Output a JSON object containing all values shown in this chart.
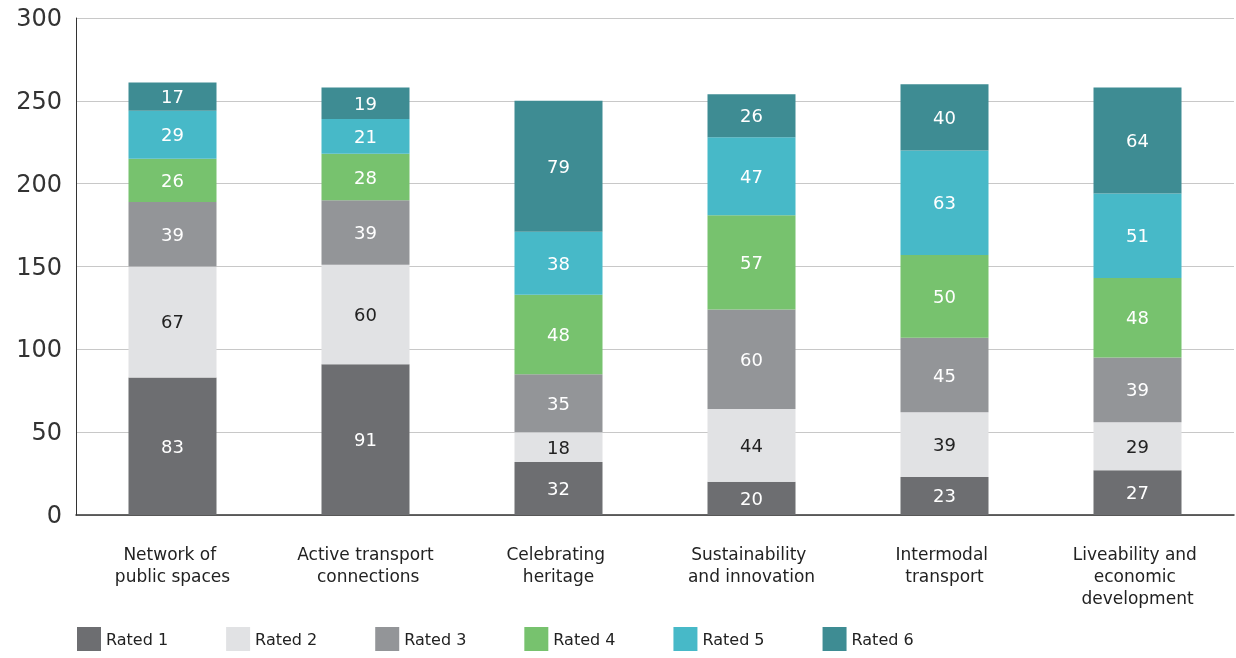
{
  "chart_data": {
    "type": "bar",
    "stacked": true,
    "data_labels": true,
    "grid": "y",
    "legend": "bottom left",
    "categories": [
      "Network of public spaces",
      "Active transport connections",
      "Celebrating heritage",
      "Sustainability and innovation",
      "Intermodal transport",
      "Liveability and economic development"
    ],
    "ylim": [
      0,
      300
    ],
    "yticks": [
      0,
      50,
      100,
      150,
      200,
      250,
      300
    ],
    "series": [
      {
        "name": "Rated 1",
        "color": "#6d6e71",
        "values": [
          83,
          91,
          32,
          20,
          23,
          27
        ]
      },
      {
        "name": "Rated 2",
        "color": "#e1e2e4",
        "values": [
          67,
          60,
          18,
          44,
          39,
          29
        ]
      },
      {
        "name": "Rated 3",
        "color": "#939598",
        "values": [
          39,
          39,
          35,
          60,
          45,
          39
        ]
      },
      {
        "name": "Rated 4",
        "color": "#77c26e",
        "values": [
          26,
          28,
          48,
          57,
          50,
          48
        ]
      },
      {
        "name": "Rated 5",
        "color": "#47b9c8",
        "values": [
          29,
          21,
          38,
          47,
          63,
          51
        ]
      },
      {
        "name": "Rated 6",
        "color": "#3e8c93",
        "values": [
          17,
          19,
          79,
          26,
          40,
          64
        ]
      }
    ]
  }
}
